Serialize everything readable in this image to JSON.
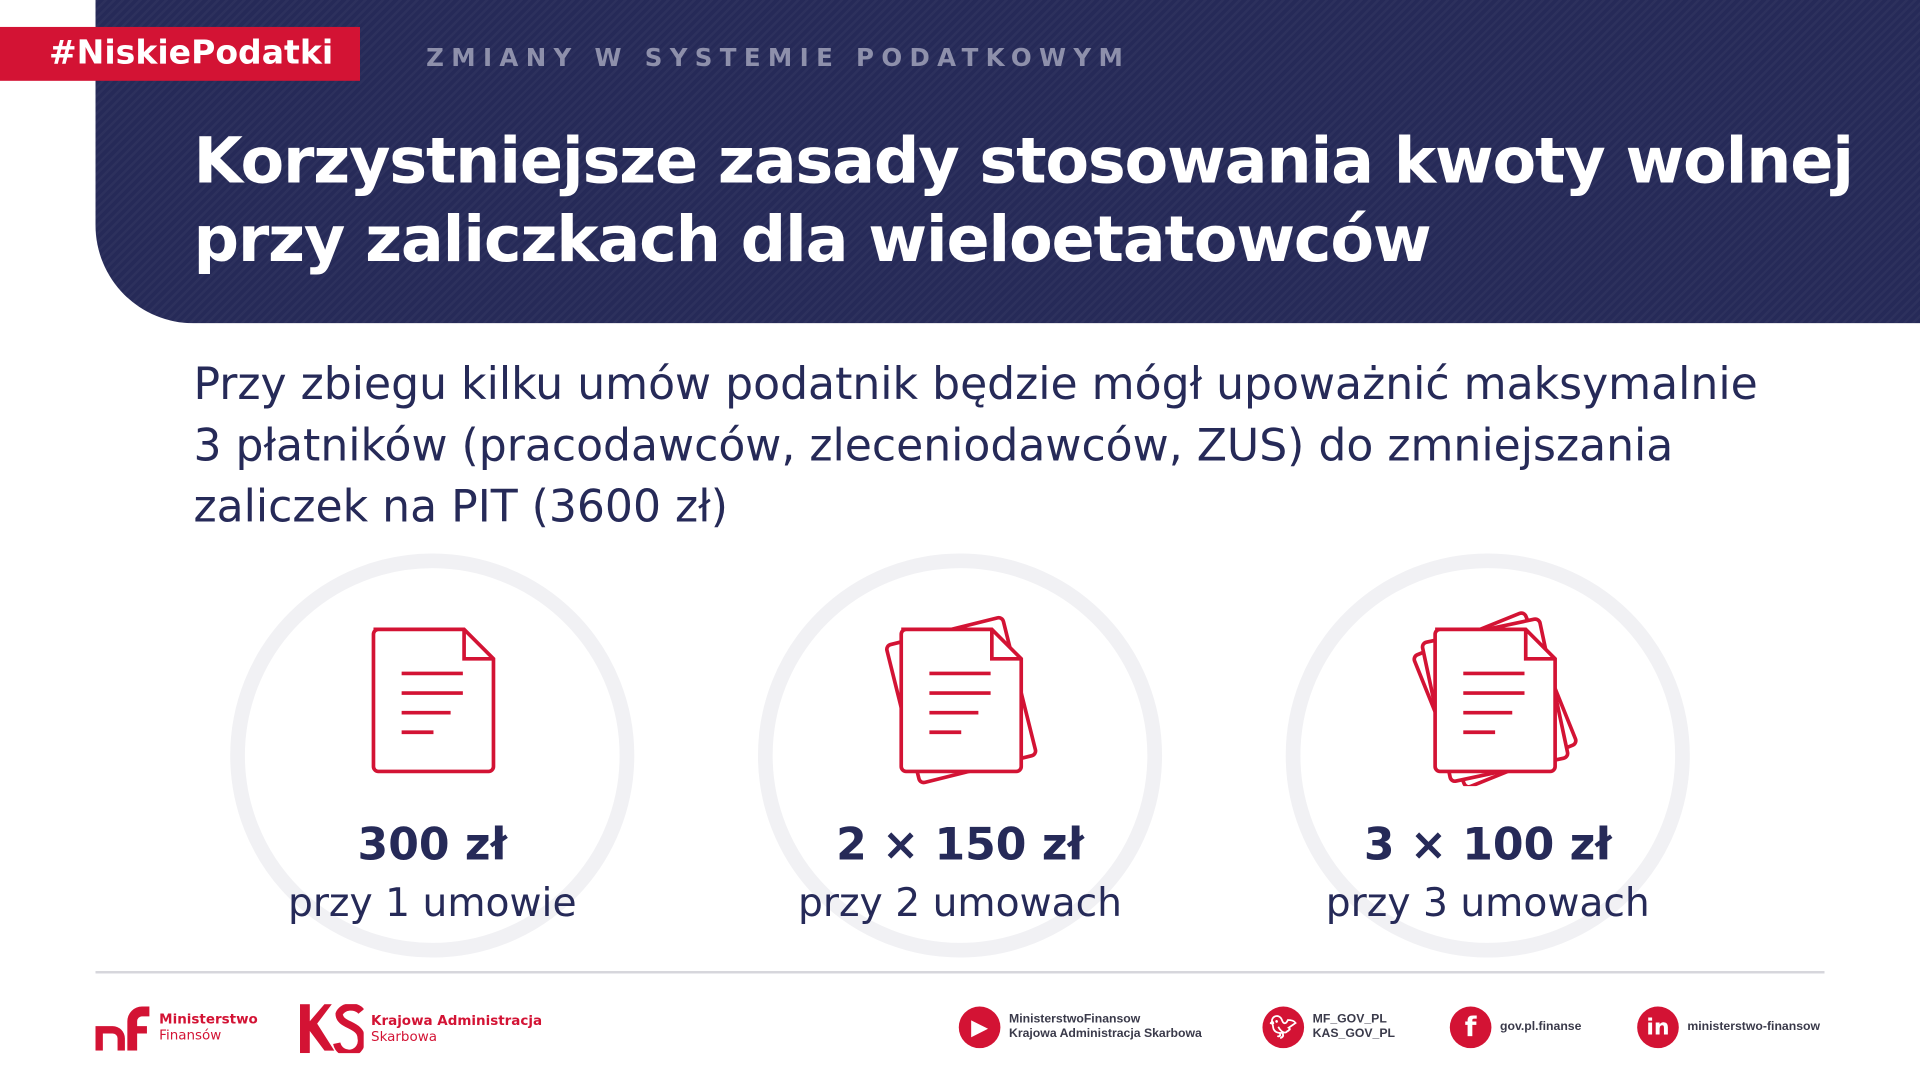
{
  "hashtag": "#NiskiePodatki",
  "subtitle": "ZMIANY W SYSTEMIE PODATKOWYM",
  "title": "Korzystniejsze zasady stosowania kwoty wolnej przy zaliczkach dla wieloetatowców",
  "lead": "Przy zbiegu kilku umów podatnik będzie mógł upoważnić maksymalnie 3 płatników (pracodawców, zleceniodawców, ZUS) do zmniejszania zaliczek na PIT (3600 zł)",
  "cards": [
    {
      "amount": "300 zł",
      "label": "przy 1 umowie",
      "icon": "document-icon"
    },
    {
      "amount": "2 × 150 zł",
      "label": "przy 2 umowach",
      "icon": "two-documents-icon"
    },
    {
      "amount": "3 × 100 zł",
      "label": "przy 3 umowach",
      "icon": "three-documents-icon"
    }
  ],
  "footer": {
    "mf": {
      "line1": "Ministerstwo",
      "line2": "Finansów"
    },
    "kas": {
      "line1": "Krajowa Administracja",
      "line2": "Skarbowa"
    },
    "youtube": {
      "line1": "MinisterstwoFinansow",
      "line2": "Krajowa Administracja Skarbowa"
    },
    "twitter": {
      "line1": "MF_GOV_PL",
      "line2": "KAS_GOV_PL"
    },
    "facebook": {
      "line1": "gov.pl.finanse"
    },
    "linkedin": {
      "line1": "ministerstwo-finansow"
    }
  },
  "colors": {
    "navy": "#262a58",
    "red": "#d31334"
  }
}
